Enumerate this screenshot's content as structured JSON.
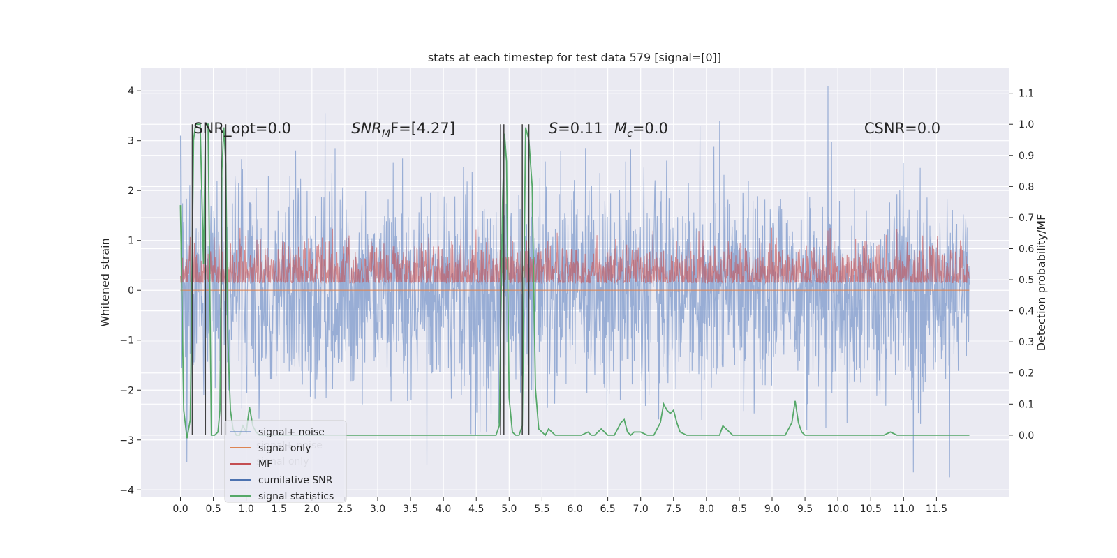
{
  "chart_data": {
    "type": "line",
    "title": "stats at each timestep for test data 579 [signal=[0]]",
    "xlabel": "",
    "ylabel": "Whitened strain",
    "ylabel_right": "Detection probability/MF",
    "xlim": [
      -0.6,
      12.6
    ],
    "ylim": [
      -4.15,
      4.45
    ],
    "ylim_right": [
      -0.2,
      1.18
    ],
    "x_ticks": [
      0.0,
      0.5,
      1.0,
      1.5,
      2.0,
      2.5,
      3.0,
      3.5,
      4.0,
      4.5,
      5.0,
      5.5,
      6.0,
      6.5,
      7.0,
      7.5,
      8.0,
      8.5,
      9.0,
      9.5,
      10.0,
      10.5,
      11.0,
      11.5
    ],
    "x_tick_labels": [
      "0.0",
      "0.5",
      "1.0",
      "1.5",
      "2.0",
      "2.5",
      "3.0",
      "3.5",
      "4.0",
      "4.5",
      "5.0",
      "5.5",
      "6.0",
      "6.5",
      "7.0",
      "7.5",
      "8.0",
      "8.5",
      "9.0",
      "9.5",
      "10.0",
      "10.5",
      "11.0",
      "11.5"
    ],
    "y_ticks": [
      -4,
      -3,
      -2,
      -1,
      0,
      1,
      2,
      3,
      4
    ],
    "y_tick_labels": [
      "−4",
      "−3",
      "−2",
      "−1",
      "0",
      "1",
      "2",
      "3",
      "4"
    ],
    "y_ticks_right": [
      0.0,
      0.1,
      0.2,
      0.3,
      0.4,
      0.5,
      0.6,
      0.7,
      0.8,
      0.9,
      1.0,
      1.1
    ],
    "y_tick_labels_right": [
      "0.0",
      "0.1",
      "0.2",
      "0.3",
      "0.4",
      "0.5",
      "0.6",
      "0.7",
      "0.8",
      "0.9",
      "1.0",
      "1.1"
    ],
    "grid": true,
    "legend_position": "lower-left",
    "annotations": {
      "snr_opt": {
        "x": 0.2,
        "y": 3.15,
        "text": "SNR_opt=0.0"
      },
      "snr_mf": {
        "x": 2.6,
        "y": 3.15,
        "base": "SNR",
        "sub": "M",
        "rest": "F=[4.27]"
      },
      "s_val": {
        "x": 5.6,
        "y": 3.15,
        "italic": "S",
        "rest": "=0.11"
      },
      "mc_val": {
        "x": 6.6,
        "y": 3.15,
        "italic": "M",
        "sub": "c",
        "rest": "=0.0"
      },
      "csnr": {
        "x": 10.4,
        "y": 3.15,
        "text": "CSNR=0.0"
      }
    },
    "series": [
      {
        "name": "signal+ noise",
        "color": "#7995c9",
        "axis": "left",
        "x_range": [
          0.0,
          12.0
        ],
        "noise": {
          "std": 1.0,
          "min": -3.75,
          "max": 4.1
        },
        "peaks": [
          {
            "x": 0.0,
            "y": 3.1
          },
          {
            "x": 2.2,
            "y": 3.55
          },
          {
            "x": 9.85,
            "y": 4.1
          },
          {
            "x": 11.7,
            "y": -3.75
          },
          {
            "x": 0.1,
            "y": -3.45
          },
          {
            "x": 3.75,
            "y": -3.5
          },
          {
            "x": 11.15,
            "y": -3.65
          },
          {
            "x": 8.2,
            "y": 3.4
          },
          {
            "x": 7.9,
            "y": 3.3
          }
        ]
      },
      {
        "name": "signal only",
        "color": "#dd8452",
        "axis": "left",
        "x": [
          0.0,
          12.0
        ],
        "y": [
          0.0,
          0.0
        ]
      },
      {
        "name": "MF",
        "color": "#c44e52",
        "axis": "right",
        "x_range": [
          0.0,
          12.0
        ],
        "band": {
          "center": 0.52,
          "std": 0.05,
          "min": 0.49,
          "max": 0.67
        }
      },
      {
        "name": "cumilative SNR",
        "color": "#4c72b0",
        "axis": "right",
        "x": [],
        "y": []
      },
      {
        "name": "signal statistics",
        "color": "#55a868",
        "axis": "right",
        "x": [
          0.0,
          0.05,
          0.1,
          0.15,
          0.2,
          0.23,
          0.26,
          0.3,
          0.35,
          0.38,
          0.42,
          0.47,
          0.52,
          0.57,
          0.6,
          0.63,
          0.66,
          0.69,
          0.72,
          0.76,
          0.8,
          0.85,
          0.9,
          0.95,
          1.0,
          1.05,
          1.1,
          1.15,
          1.2,
          1.3,
          4.5,
          4.6,
          4.7,
          4.8,
          4.85,
          4.9,
          4.93,
          4.96,
          5.0,
          5.05,
          5.1,
          5.15,
          5.2,
          5.25,
          5.3,
          5.35,
          5.4,
          5.45,
          5.5,
          5.55,
          5.6,
          5.65,
          5.7,
          5.8,
          5.9,
          6.0,
          6.1,
          6.2,
          6.25,
          6.3,
          6.35,
          6.4,
          6.5,
          6.6,
          6.65,
          6.7,
          6.75,
          6.8,
          6.85,
          6.9,
          6.95,
          7.0,
          7.1,
          7.2,
          7.3,
          7.35,
          7.4,
          7.45,
          7.5,
          7.55,
          7.6,
          7.7,
          7.8,
          8.0,
          8.1,
          8.2,
          8.25,
          8.3,
          8.35,
          8.4,
          8.5,
          8.6,
          9.0,
          9.1,
          9.2,
          9.3,
          9.35,
          9.4,
          9.45,
          9.5,
          9.55,
          9.6,
          10.0,
          10.5,
          10.7,
          10.8,
          10.9,
          11.0,
          11.3,
          11.4,
          12.0
        ],
        "y": [
          0.74,
          0.08,
          -0.01,
          0.05,
          0.95,
          1.0,
          1.0,
          1.0,
          0.55,
          1.0,
          1.0,
          0.0,
          0.0,
          0.01,
          0.08,
          0.85,
          0.99,
          0.87,
          0.31,
          0.08,
          0.02,
          0.0,
          0.0,
          0.03,
          0.01,
          0.09,
          0.03,
          0.01,
          0.0,
          0.0,
          0.0,
          0.0,
          0.0,
          0.0,
          0.03,
          0.75,
          0.97,
          0.88,
          0.12,
          0.01,
          0.0,
          0.0,
          0.03,
          0.99,
          0.95,
          0.8,
          0.15,
          0.02,
          0.01,
          0.0,
          0.02,
          0.01,
          0.0,
          0.0,
          0.0,
          0.0,
          0.0,
          0.01,
          0.0,
          0.0,
          0.01,
          0.02,
          0.0,
          0.0,
          0.02,
          0.04,
          0.05,
          0.01,
          0.0,
          0.01,
          0.01,
          0.01,
          0.0,
          0.0,
          0.04,
          0.1,
          0.08,
          0.07,
          0.08,
          0.04,
          0.01,
          0.0,
          0.0,
          0.0,
          0.0,
          0.0,
          0.03,
          0.02,
          0.01,
          0.0,
          0.0,
          0.0,
          0.0,
          0.0,
          0.0,
          0.04,
          0.11,
          0.04,
          0.01,
          0.0,
          0.0,
          0.0,
          0.0,
          0.0,
          0.0,
          0.01,
          0.0,
          0.0,
          0.0,
          0.0,
          0.0
        ]
      }
    ],
    "vertical_markers": {
      "color": "#404040",
      "axis": "right",
      "y_range": [
        0.0,
        1.0
      ],
      "x": [
        0.18,
        0.38,
        0.62,
        0.69,
        4.87,
        4.92,
        5.2,
        5.3
      ]
    },
    "legend_ghost_labels": [
      "signal+ noise",
      "signal only"
    ]
  }
}
